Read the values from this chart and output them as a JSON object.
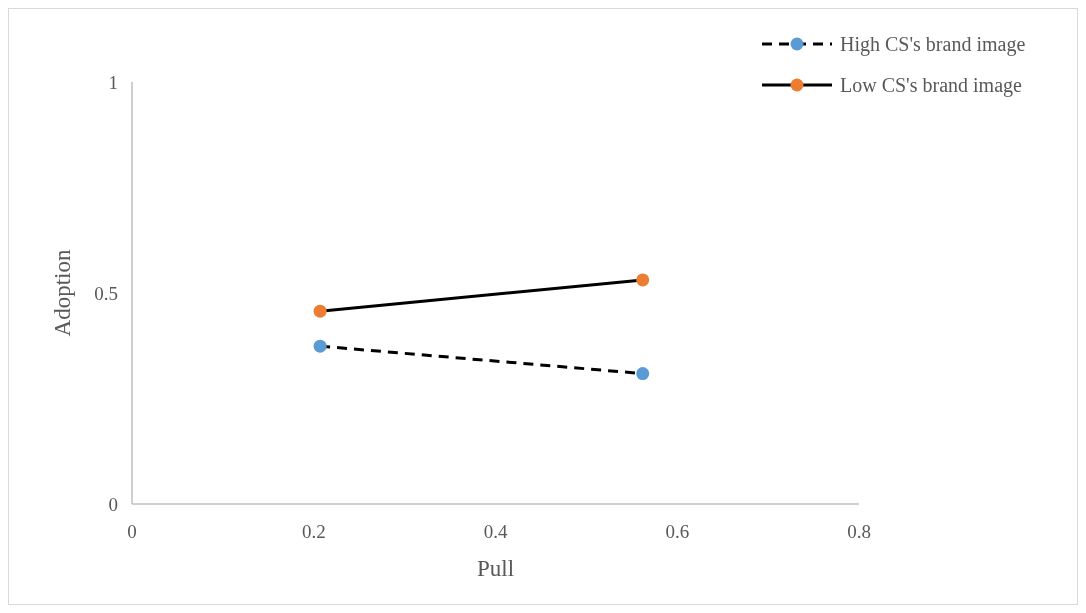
{
  "chart_data": {
    "type": "line",
    "xlabel": "Pull",
    "ylabel": "Adoption",
    "x": [
      0.207,
      0.562
    ],
    "series": [
      {
        "name": "High CS's brand image",
        "color": "#5b9bd5",
        "values": [
          0.374,
          0.309
        ],
        "line_style": "dashed"
      },
      {
        "name": "Low CS's brand image",
        "color": "#ed7d31",
        "values": [
          0.457,
          0.531
        ],
        "line_style": "solid"
      }
    ],
    "xlim": [
      0,
      0.8
    ],
    "xticks": [
      0,
      0.2,
      0.4,
      0.6,
      0.8
    ],
    "ylim": [
      0,
      1
    ],
    "yticks": [
      0,
      0.5,
      1
    ],
    "grid": false,
    "legend": "top right",
    "marker": "circle"
  }
}
